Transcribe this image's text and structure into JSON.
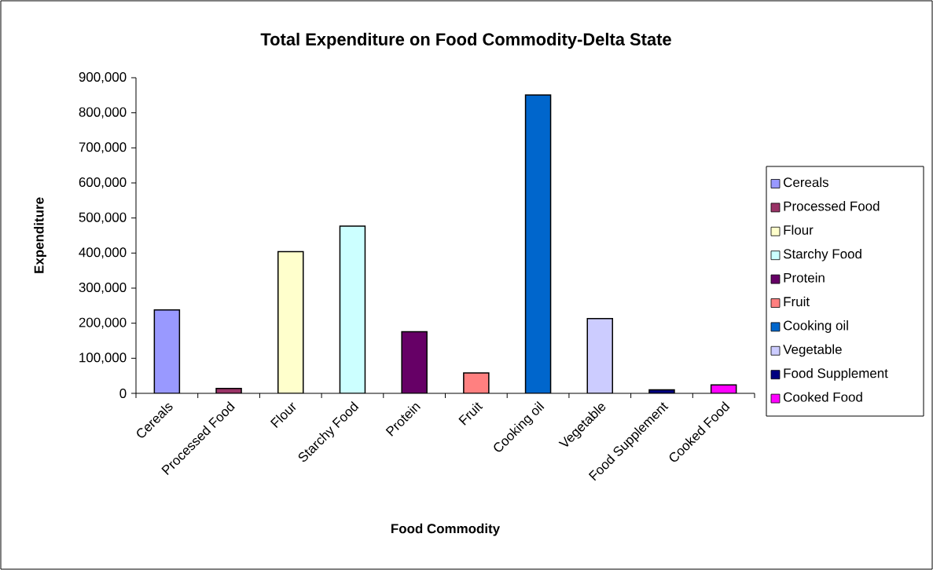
{
  "chart_data": {
    "type": "bar",
    "title": "Total Expenditure on Food Commodity-Delta State",
    "xlabel": "Food Commodity",
    "ylabel": "Expenditure",
    "categories": [
      "Cereals",
      "Processed Food",
      "Flour",
      "Starchy Food",
      "Protein",
      "Fruit",
      "Cooking oil",
      "Vegetable",
      "Food Supplement",
      "Cooked Food"
    ],
    "series": [
      {
        "name": "Cereals",
        "color": "#9999ff",
        "values": [
          238000,
          null,
          null,
          null,
          null,
          null,
          null,
          null,
          null,
          null
        ]
      },
      {
        "name": "Processed Food",
        "color": "#993366",
        "values": [
          null,
          14000,
          null,
          null,
          null,
          null,
          null,
          null,
          null,
          null
        ]
      },
      {
        "name": "Flour",
        "color": "#ffffcc",
        "values": [
          null,
          null,
          404000,
          null,
          null,
          null,
          null,
          null,
          null,
          null
        ]
      },
      {
        "name": "Starchy Food",
        "color": "#ccffff",
        "values": [
          null,
          null,
          null,
          477000,
          null,
          null,
          null,
          null,
          null,
          null
        ]
      },
      {
        "name": "Protein",
        "color": "#660066",
        "values": [
          null,
          null,
          null,
          null,
          176000,
          null,
          null,
          null,
          null,
          null
        ]
      },
      {
        "name": "Fruit",
        "color": "#ff8080",
        "values": [
          null,
          null,
          null,
          null,
          null,
          58000,
          null,
          null,
          null,
          null
        ]
      },
      {
        "name": "Cooking oil",
        "color": "#0066cc",
        "values": [
          null,
          null,
          null,
          null,
          null,
          null,
          851000,
          null,
          null,
          null
        ]
      },
      {
        "name": "Vegetable",
        "color": "#ccccff",
        "values": [
          null,
          null,
          null,
          null,
          null,
          null,
          null,
          213000,
          null,
          null
        ]
      },
      {
        "name": "Food Supplement",
        "color": "#000080",
        "values": [
          null,
          null,
          null,
          null,
          null,
          null,
          null,
          null,
          10000,
          null
        ]
      },
      {
        "name": "Cooked Food",
        "color": "#ff00ff",
        "values": [
          null,
          null,
          null,
          null,
          null,
          null,
          null,
          null,
          null,
          24000
        ]
      }
    ],
    "ylim": [
      0,
      900000
    ],
    "yticks": [
      {
        "value": 0,
        "label": "0"
      },
      {
        "value": 100000,
        "label": "100,000"
      },
      {
        "value": 200000,
        "label": "200,000"
      },
      {
        "value": 300000,
        "label": "300,000"
      },
      {
        "value": 400000,
        "label": "400,000"
      },
      {
        "value": 500000,
        "label": "500,000"
      },
      {
        "value": 600000,
        "label": "600,000"
      },
      {
        "value": 700000,
        "label": "700,000"
      },
      {
        "value": 800000,
        "label": "800,000"
      },
      {
        "value": 900000,
        "label": "900,000"
      }
    ],
    "legend": "right"
  }
}
